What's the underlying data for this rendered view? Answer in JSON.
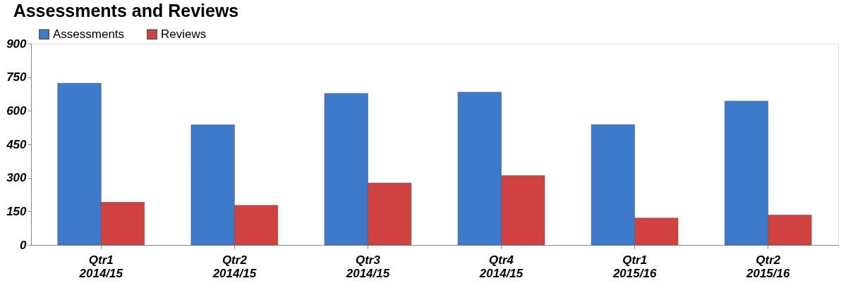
{
  "chart_data": {
    "type": "bar",
    "title": "Assessments and Reviews",
    "categories": [
      "Qtr1\n2014/15",
      "Qtr2\n2014/15",
      "Qtr3\n2014/15",
      "Qtr4\n2014/15",
      "Qtr1\n2015/16",
      "Qtr2\n2015/16"
    ],
    "series": [
      {
        "name": "Assessments",
        "color": "#3d7acb",
        "values": [
          723,
          537,
          677,
          683,
          538,
          643
        ]
      },
      {
        "name": "Reviews",
        "color": "#d04141",
        "values": [
          191,
          177,
          277,
          310,
          120,
          134
        ]
      }
    ],
    "ylim": [
      0,
      900
    ],
    "yticks": [
      0,
      150,
      300,
      450,
      600,
      750,
      900
    ],
    "grid": false,
    "legend": "top left"
  }
}
